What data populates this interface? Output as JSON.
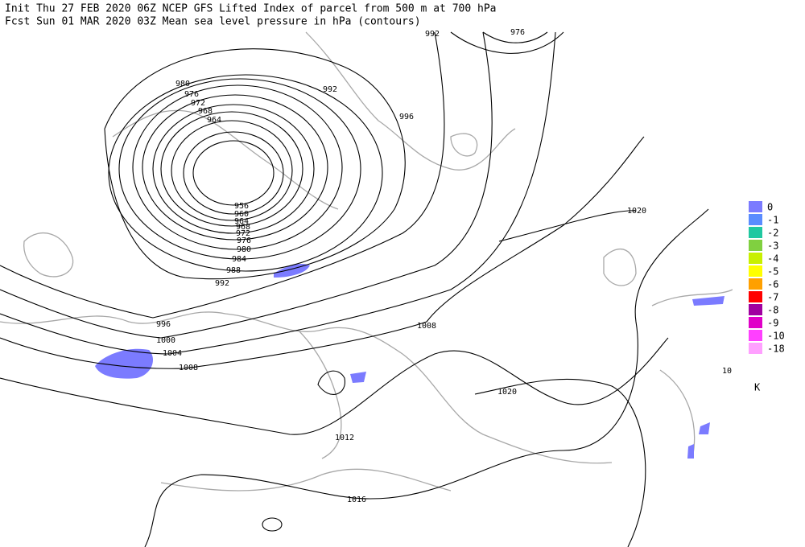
{
  "header": {
    "line1": "Init  Thu 27 FEB 2020 06Z  NCEP GFS Lifted Index of parcel from 500 m at 700 hPa",
    "line2": "Fcst Sun 01 MAR 2020 03Z  Mean sea level pressure in hPa (contours)"
  },
  "contour_labels": [
    "992",
    "976",
    "980",
    "976",
    "972",
    "968",
    "964",
    "992",
    "996",
    "956",
    "960",
    "964",
    "968",
    "972",
    "976",
    "980",
    "984",
    "988",
    "992",
    "996",
    "1000",
    "1004",
    "1008",
    "1008",
    "1012",
    "1016",
    "1020",
    "1020",
    "10"
  ],
  "legend": {
    "items": [
      {
        "label": "0",
        "color": "#7b7bff"
      },
      {
        "label": "-1",
        "color": "#5a8cff"
      },
      {
        "label": "-2",
        "color": "#20c8a0"
      },
      {
        "label": "-3",
        "color": "#80d040"
      },
      {
        "label": "-4",
        "color": "#c8f000"
      },
      {
        "label": "-5",
        "color": "#ffff00"
      },
      {
        "label": "-6",
        "color": "#ffa000"
      },
      {
        "label": "-7",
        "color": "#ff0000"
      },
      {
        "label": "-8",
        "color": "#a000a0"
      },
      {
        "label": "-9",
        "color": "#e000c8"
      },
      {
        "label": "-10",
        "color": "#ff40ff"
      },
      {
        "label": "-18",
        "color": "#ffa0ff"
      }
    ],
    "unit": "K"
  }
}
